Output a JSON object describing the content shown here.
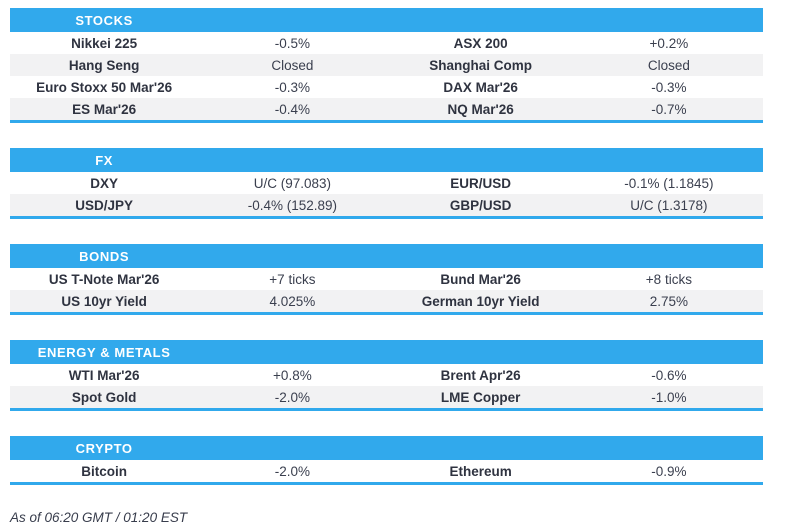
{
  "colors": {
    "accent": "#31a9ec",
    "row_alt": "#f2f2f3"
  },
  "sections": [
    {
      "title": "STOCKS",
      "rows": [
        {
          "left_name": "Nikkei 225",
          "left_value": "-0.5%",
          "right_name": "ASX 200",
          "right_value": "+0.2%"
        },
        {
          "left_name": "Hang Seng",
          "left_value": "Closed",
          "right_name": "Shanghai Comp",
          "right_value": "Closed"
        },
        {
          "left_name": "Euro Stoxx 50 Mar'26",
          "left_value": "-0.3%",
          "right_name": "DAX Mar'26",
          "right_value": "-0.3%"
        },
        {
          "left_name": "ES Mar'26",
          "left_value": "-0.4%",
          "right_name": "NQ Mar'26",
          "right_value": "-0.7%"
        }
      ]
    },
    {
      "title": "FX",
      "rows": [
        {
          "left_name": "DXY",
          "left_value": "U/C (97.083)",
          "right_name": "EUR/USD",
          "right_value": "-0.1% (1.1845)"
        },
        {
          "left_name": "USD/JPY",
          "left_value": "-0.4% (152.89)",
          "right_name": "GBP/USD",
          "right_value": "U/C (1.3178)"
        }
      ]
    },
    {
      "title": "BONDS",
      "rows": [
        {
          "left_name": "US T-Note Mar'26",
          "left_value": "+7 ticks",
          "right_name": "Bund Mar'26",
          "right_value": "+8 ticks"
        },
        {
          "left_name": "US 10yr Yield",
          "left_value": "4.025%",
          "right_name": "German 10yr Yield",
          "right_value": "2.75%"
        }
      ]
    },
    {
      "title": "ENERGY & METALS",
      "rows": [
        {
          "left_name": "WTI Mar'26",
          "left_value": "+0.8%",
          "right_name": "Brent Apr'26",
          "right_value": "-0.6%"
        },
        {
          "left_name": "Spot Gold",
          "left_value": "-2.0%",
          "right_name": "LME Copper",
          "right_value": "-1.0%"
        }
      ]
    },
    {
      "title": "CRYPTO",
      "rows": [
        {
          "left_name": "Bitcoin",
          "left_value": "-2.0%",
          "right_name": "Ethereum",
          "right_value": "-0.9%"
        }
      ]
    }
  ],
  "footer": {
    "text": "As of 06:20 GMT / 01:20 EST"
  }
}
